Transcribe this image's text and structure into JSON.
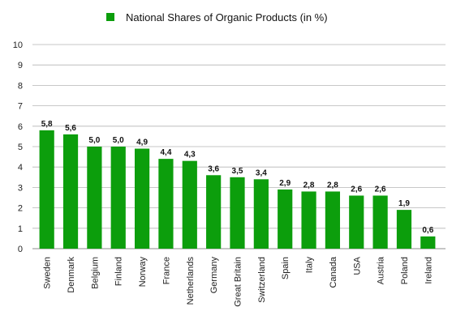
{
  "chart_data": {
    "type": "bar",
    "title": "",
    "xlabel": "",
    "ylabel": "",
    "ylim": [
      0,
      10
    ],
    "y_ticks": [
      "0",
      "1",
      "2",
      "3",
      "4",
      "5",
      "6",
      "7",
      "8",
      "9",
      "10"
    ],
    "grid": true,
    "legend_position": "top-center",
    "categories": [
      "Sweden",
      "Denmark",
      "Belgium",
      "Finland",
      "Norway",
      "France",
      "Netherlands",
      "Germany",
      "Great Britain",
      "Switzerland",
      "Spain",
      "Italy",
      "Canada",
      "USA",
      "Austria",
      "Poland",
      "Ireland"
    ],
    "series": [
      {
        "name": "National Shares of Organic Products (in %)",
        "color": "#0c9e0c",
        "values": [
          5.8,
          5.6,
          5.0,
          5.0,
          4.9,
          4.4,
          4.3,
          3.6,
          3.5,
          3.4,
          2.9,
          2.8,
          2.8,
          2.6,
          2.6,
          1.9,
          0.6
        ],
        "data_labels": [
          "5,8",
          "5,6",
          "5,0",
          "5,0",
          "4,9",
          "4,4",
          "4,3",
          "3,6",
          "3,5",
          "3,4",
          "2,9",
          "2,8",
          "2,8",
          "2,6",
          "2,6",
          "1,9",
          "0,6"
        ]
      }
    ]
  }
}
